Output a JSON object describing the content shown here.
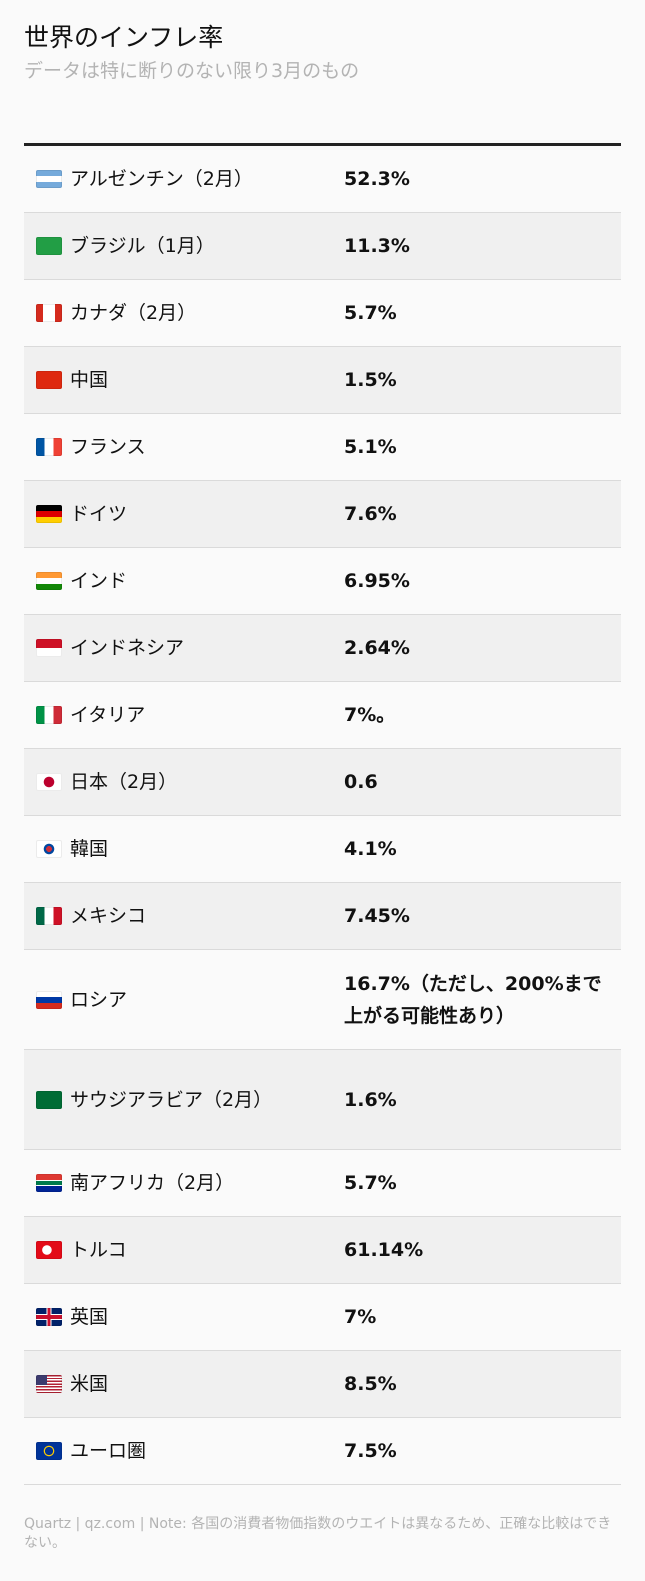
{
  "title": "世界のインフレ率",
  "subtitle": "データは特に断りのない限り3月のもの",
  "chart_data": {
    "type": "table",
    "columns": [
      "",
      ""
    ],
    "rows": [
      {
        "country": "アルゼンチン（2月）",
        "value": "52.3%",
        "flag": "argentina-flag-icon"
      },
      {
        "country": "ブラジル（1月）",
        "value": "11.3%",
        "flag": "brazil-flag-icon"
      },
      {
        "country": "カナダ（2月）",
        "value": "5.7%",
        "flag": "canada-flag-icon"
      },
      {
        "country": "中国",
        "value": "1.5%",
        "flag": "china-flag-icon"
      },
      {
        "country": "フランス",
        "value": "5.1%",
        "flag": "france-flag-icon"
      },
      {
        "country": "ドイツ",
        "value": "7.6%",
        "flag": "germany-flag-icon"
      },
      {
        "country": "インド",
        "value": "6.95%",
        "flag": "india-flag-icon"
      },
      {
        "country": "インドネシア",
        "value": "2.64%",
        "flag": "indonesia-flag-icon"
      },
      {
        "country": "イタリア",
        "value": "7%。",
        "flag": "italy-flag-icon"
      },
      {
        "country": "日本（2月）",
        "value": "0.6",
        "flag": "japan-flag-icon"
      },
      {
        "country": "韓国",
        "value": "4.1%",
        "flag": "south-korea-flag-icon"
      },
      {
        "country": "メキシコ",
        "value": "7.45%",
        "flag": "mexico-flag-icon"
      },
      {
        "country": "ロシア",
        "value": "16.7%（ただし、200%まで上がる可能性あり）",
        "flag": "russia-flag-icon"
      },
      {
        "country": "サウジアラビア（2月）",
        "value": "1.6%",
        "flag": "saudi-arabia-flag-icon"
      },
      {
        "country": "南アフリカ（2月）",
        "value": "5.7%",
        "flag": "south-africa-flag-icon"
      },
      {
        "country": "トルコ",
        "value": "61.14%",
        "flag": "turkey-flag-icon"
      },
      {
        "country": "英国",
        "value": "7%",
        "flag": "uk-flag-icon"
      },
      {
        "country": "米国",
        "value": "8.5%",
        "flag": "us-flag-icon"
      },
      {
        "country": "ユーロ圏",
        "value": "7.5%",
        "flag": "eu-flag-icon"
      }
    ]
  },
  "footer": "Quartz | qz.com | Note: 各国の消費者物価指数のウエイトは異なるため、正確な比較はできない。"
}
